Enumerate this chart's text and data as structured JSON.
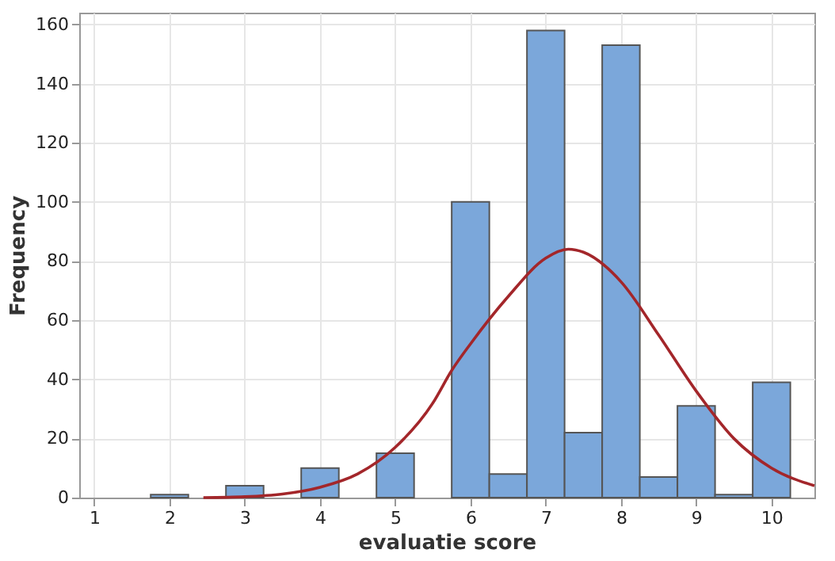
{
  "chart_data": {
    "type": "histogram",
    "xlabel": "evaluatie score",
    "ylabel": "Frequency",
    "bins": [
      1.75,
      2.25,
      2.75,
      3.25,
      3.75,
      4.25,
      4.75,
      5.25,
      5.75,
      6.25,
      6.75,
      7.25,
      7.75,
      8.25,
      8.75,
      9.25,
      9.75,
      10.25
    ],
    "values": [
      1,
      0,
      4,
      0,
      10,
      0,
      15,
      0,
      100,
      8,
      158,
      22,
      153,
      7,
      31,
      1,
      39
    ],
    "color": "#7ba7da",
    "series": [
      {
        "type": "line",
        "color": "#a3262a",
        "x": [
          2.45,
          3,
          3.5,
          4,
          4.5,
          5,
          5.5,
          5.75,
          6,
          6.5,
          7,
          7.3,
          7.5,
          8,
          8.5,
          9,
          9.5,
          10,
          10.57
        ],
        "values": [
          0,
          0.3,
          1.2,
          3.5,
          8,
          17,
          32,
          43,
          52,
          68,
          81,
          84,
          83,
          73,
          55,
          36,
          20,
          10,
          4
        ]
      }
    ],
    "xlim": [
      0.8,
      10.57
    ],
    "ylim": [
      0,
      164
    ],
    "xticks": [
      1,
      2,
      3,
      4,
      5,
      6,
      7,
      8,
      9,
      10
    ],
    "yticks": [
      0,
      20,
      40,
      60,
      80,
      100,
      120,
      140,
      160
    ],
    "grid": true
  }
}
